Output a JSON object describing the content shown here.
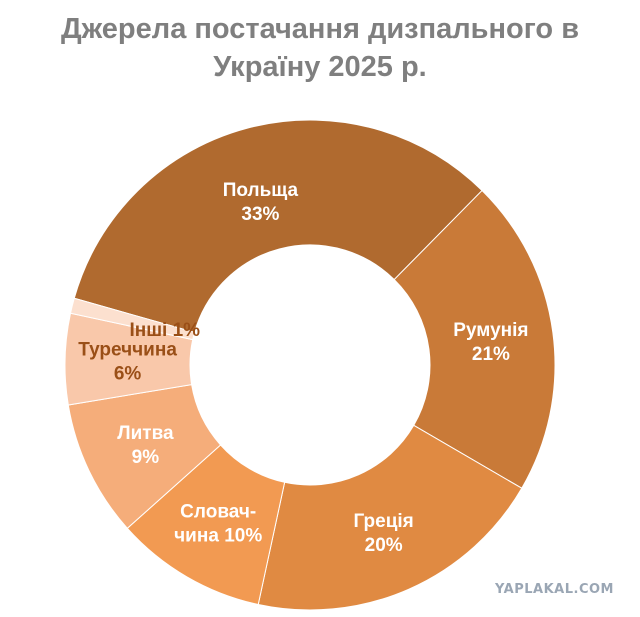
{
  "chart_data": {
    "type": "pie",
    "title_lines": [
      "Джерела постачання дизпального в",
      "Україну 2025 р."
    ],
    "slices": [
      {
        "label_lines": [
          "Польща",
          "33%"
        ],
        "value": 33,
        "color": "#b06a2f",
        "text_color": "#ffffff"
      },
      {
        "label_lines": [
          "Румунія",
          "21%"
        ],
        "value": 21,
        "color": "#c97a38",
        "text_color": "#ffffff"
      },
      {
        "label_lines": [
          "Греція",
          "20%"
        ],
        "value": 20,
        "color": "#e08a42",
        "text_color": "#ffffff"
      },
      {
        "label_lines": [
          "Словач-",
          "чина 10%"
        ],
        "value": 10,
        "color": "#f29a52",
        "text_color": "#ffffff"
      },
      {
        "label_lines": [
          "Литва",
          "9%"
        ],
        "value": 9,
        "color": "#f5ad7a",
        "text_color": "#ffffff"
      },
      {
        "label_lines": [
          "Туреччина",
          "6%"
        ],
        "value": 6,
        "color": "#f9c8aa",
        "text_color": "#9a4f17"
      },
      {
        "label_lines": [
          "Інші 1%"
        ],
        "value": 1,
        "color": "#fce0cf",
        "text_color": "#9a4f17"
      }
    ]
  },
  "watermark": "YAPLAKAL.COM"
}
